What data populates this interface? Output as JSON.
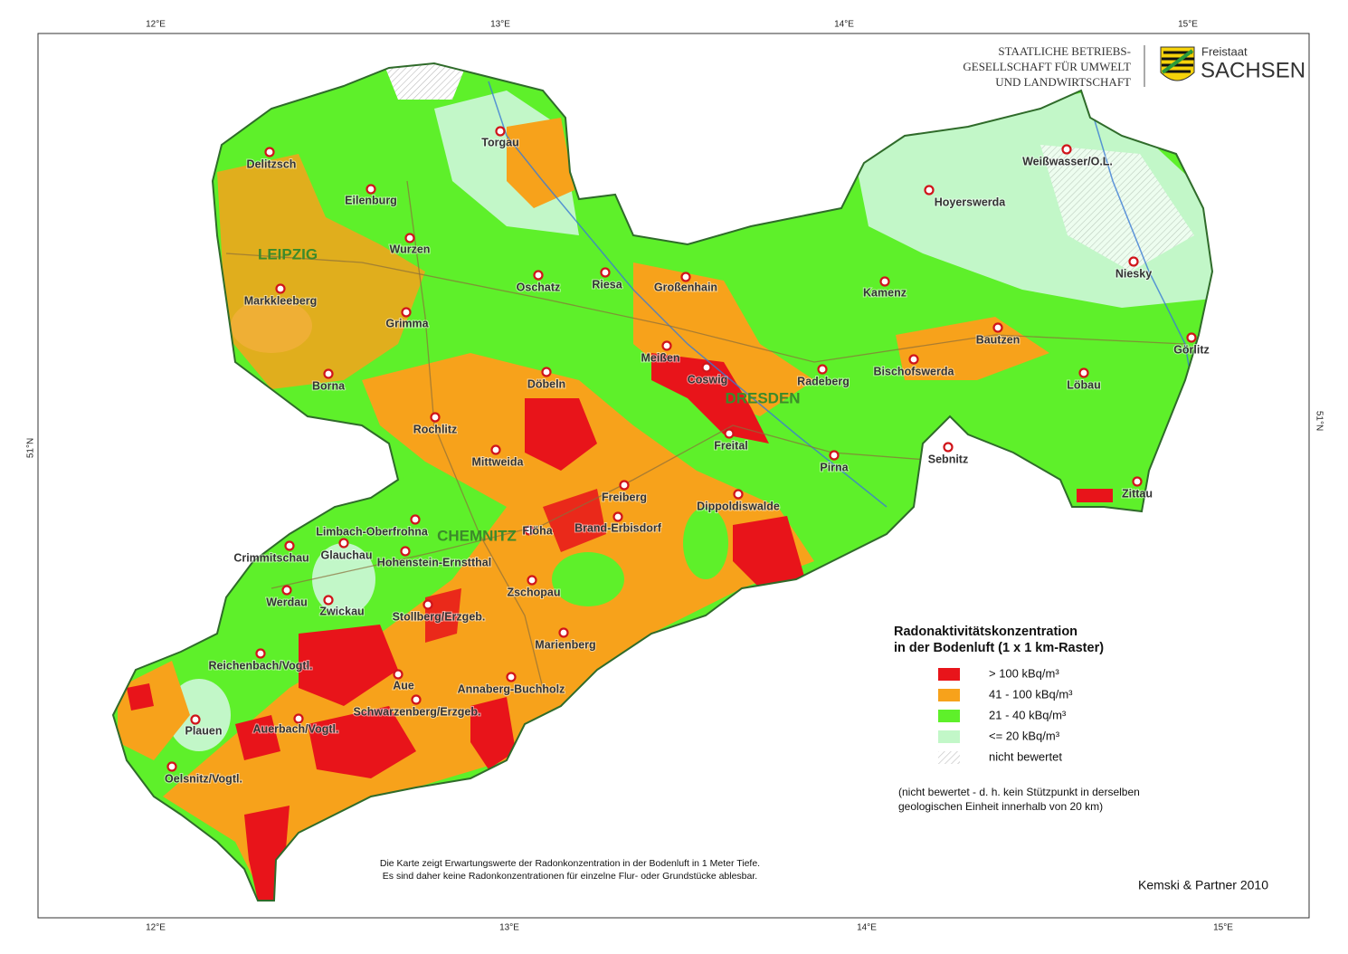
{
  "header": {
    "org_lines": [
      "STAATLICHE BETRIEBS-",
      "GESELLSCHAFT FÜR UMWELT",
      "UND LANDWIRTSCHAFT"
    ],
    "state_small": "Freistaat",
    "state_big": "SACHSEN"
  },
  "graticule": {
    "top": [
      "12°E",
      "13°E",
      "14°E",
      "15°E"
    ],
    "bottom": [
      "12°E",
      "13°E",
      "14°E",
      "15°E"
    ],
    "left": "51°N",
    "right": "51°N"
  },
  "regions": [
    "LEIPZIG",
    "CHEMNITZ",
    "DRESDEN"
  ],
  "cities": [
    "Torgau",
    "Delitzsch",
    "Eilenburg",
    "Weißwasser/O.L.",
    "Hoyerswerda",
    "Wurzen",
    "Oschatz",
    "Riesa",
    "Großenhain",
    "Kamenz",
    "Niesky",
    "Markkleeberg",
    "Grimma",
    "Bautzen",
    "Görlitz",
    "Meißen",
    "Coswig",
    "Radeberg",
    "Bischofswerda",
    "Löbau",
    "Borna",
    "Döbeln",
    "Rochlitz",
    "Freital",
    "Sebnitz",
    "Pirna",
    "Mittweida",
    "Zittau",
    "Freiberg",
    "Dippoldiswalde",
    "Limbach-Oberfrohna",
    "Brand-Erbisdorf",
    "Flöha",
    "Crimmitschau",
    "Glauchau",
    "Hohenstein-Ernstthal",
    "Zschopau",
    "Werdau",
    "Zwickau",
    "Stollberg/Erzgeb.",
    "Marienberg",
    "Reichenbach/Vogtl.",
    "Aue",
    "Annaberg-Buchholz",
    "Plauen",
    "Auerbach/Vogtl.",
    "Schwarzenberg/Erzgeb.",
    "Oelsnitz/Vogtl."
  ],
  "legend": {
    "title_lines": [
      "Radonaktivitätskonzentration",
      "in der Bodenluft (1 x 1 km-Raster)"
    ],
    "items": [
      {
        "label": "> 100 kBq/m³",
        "color": "#e8141a"
      },
      {
        "label": "41 - 100 kBq/m³",
        "color": "#f7a21b"
      },
      {
        "label": "21 - 40 kBq/m³",
        "color": "#5ef02a"
      },
      {
        "label": "<= 20 kBq/m³",
        "color": "#c2f7c8"
      },
      {
        "label": "nicht bewertet"
      }
    ],
    "note_lines": [
      "(nicht bewertet - d. h. kein Stützpunkt in derselben",
      "geologischen Einheit innerhalb von 20 km)"
    ]
  },
  "note_lines": [
    "Die Karte zeigt Erwartungswerte der Radonkonzentration in der Bodenluft in 1 Meter Tiefe.",
    "Es sind daher keine Radonkonzentrationen für einzelne Flur- oder Grundstücke ablesbar."
  ],
  "credit": "Kemski & Partner 2010"
}
